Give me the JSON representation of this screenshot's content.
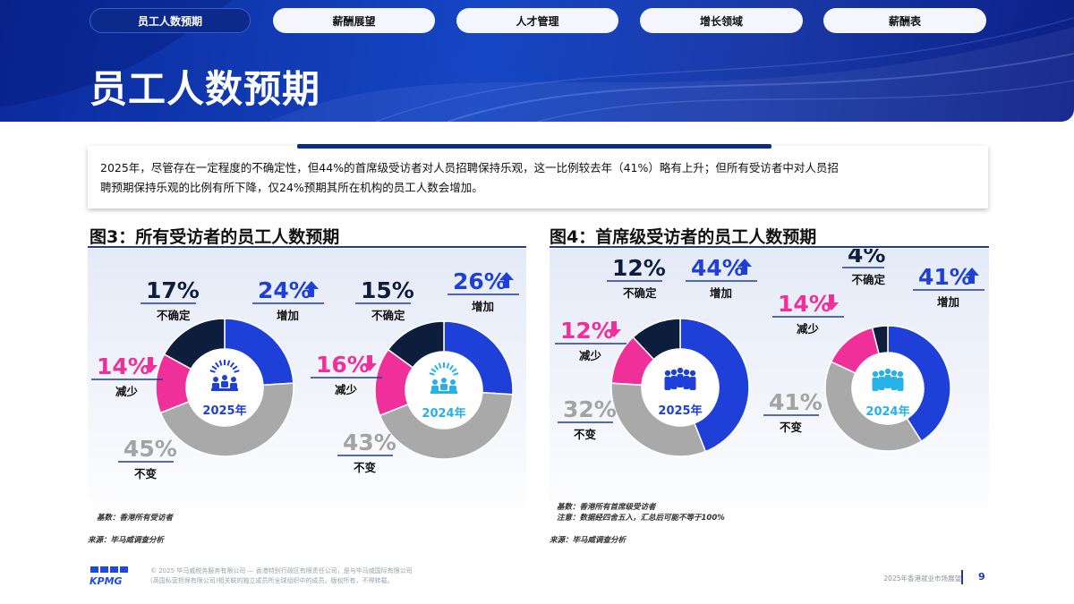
{
  "tabs": [
    {
      "label": "员工人数预期",
      "active": true
    },
    {
      "label": "薪酬展望",
      "active": false
    },
    {
      "label": "人才管理",
      "active": false
    },
    {
      "label": "增长领域",
      "active": false
    },
    {
      "label": "薪酬表",
      "active": false
    }
  ],
  "page_title": "员工人数预期",
  "summary": {
    "line1": "2025年，尽管存在一定程度的不确定性，但44%的首席级受访者对人员招聘保持乐观，这一比例较去年（41%）略有上升；但所有受访者中对人员招",
    "line2": "聘预期保持乐观的比例有所下降，仅24%预期其所在机构的员工人数会增加。"
  },
  "fig3": {
    "title": "图3：所有受访者的员工人数预期",
    "note_base": "基数：香港所有受访者",
    "source": "来源：毕马威调查分析"
  },
  "fig4": {
    "title": "图4：首席级受访者的员工人数预期",
    "note_base": "基数：香港所有首席级受访者",
    "note_extra": "注意：数据经四舍五入，汇总后可能不等于100%",
    "source": "来源：毕马威调查分析"
  },
  "colors": {
    "increase": "#1e3fd8",
    "same": "#a9a9a9",
    "decrease": "#f0309a",
    "uncertain": "#0d1e3d",
    "icon_2025": "#1e3fd8",
    "icon_2024": "#25b2ea"
  },
  "chart_data": [
    {
      "type": "pie",
      "title": "图3：所有受访者的员工人数预期",
      "donuts": [
        {
          "center_label": "2025年",
          "slices": [
            {
              "label": "增加",
              "value": 24
            },
            {
              "label": "不变",
              "value": 45
            },
            {
              "label": "减少",
              "value": 14
            },
            {
              "label": "不确定",
              "value": 17
            }
          ]
        },
        {
          "center_label": "2024年",
          "slices": [
            {
              "label": "增加",
              "value": 26
            },
            {
              "label": "不变",
              "value": 43
            },
            {
              "label": "减少",
              "value": 16
            },
            {
              "label": "不确定",
              "value": 15
            }
          ]
        }
      ]
    },
    {
      "type": "pie",
      "title": "图4：首席级受访者的员工人数预期",
      "donuts": [
        {
          "center_label": "2025年",
          "slices": [
            {
              "label": "增加",
              "value": 44
            },
            {
              "label": "不变",
              "value": 32
            },
            {
              "label": "减少",
              "value": 12
            },
            {
              "label": "不确定",
              "value": 12
            }
          ]
        },
        {
          "center_label": "2024年",
          "slices": [
            {
              "label": "增加",
              "value": 41
            },
            {
              "label": "不变",
              "value": 41
            },
            {
              "label": "减少",
              "value": 14
            },
            {
              "label": "不确定",
              "value": 4
            }
          ]
        }
      ]
    }
  ],
  "footer": {
    "logo": "KPMG",
    "copyright_line1": "© 2025 毕马威税务服务有限公司 — 香港特别行政区有限责任公司，是与毕马威国际有限公司",
    "copyright_line2": "(英国私营担保有限公司)相关联的独立成员所全球组织中的成员。版权所有，不得转载。",
    "report_name": "2025年香港就业市场展望",
    "page_number": "9"
  }
}
